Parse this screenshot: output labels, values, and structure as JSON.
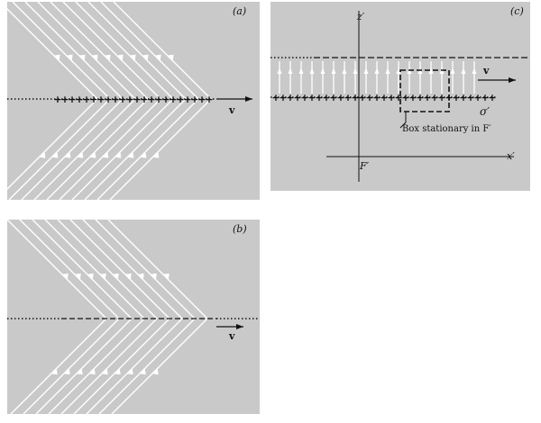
{
  "panels": {
    "a": {
      "label": "(a)",
      "velocity_label": "v"
    },
    "b": {
      "label": "(b)",
      "velocity_label": "v"
    },
    "c": {
      "label": "(c)",
      "velocity_label": "v",
      "z_axis_label": "z′",
      "x_axis_label": "x′",
      "origin_label": "F′",
      "sigma_label": "σ′",
      "box_label": "Box stationary in F′"
    }
  },
  "colors": {
    "panel_bg": "#c9c9c9",
    "field_lines": "#ffffff",
    "ink": "#111111"
  }
}
